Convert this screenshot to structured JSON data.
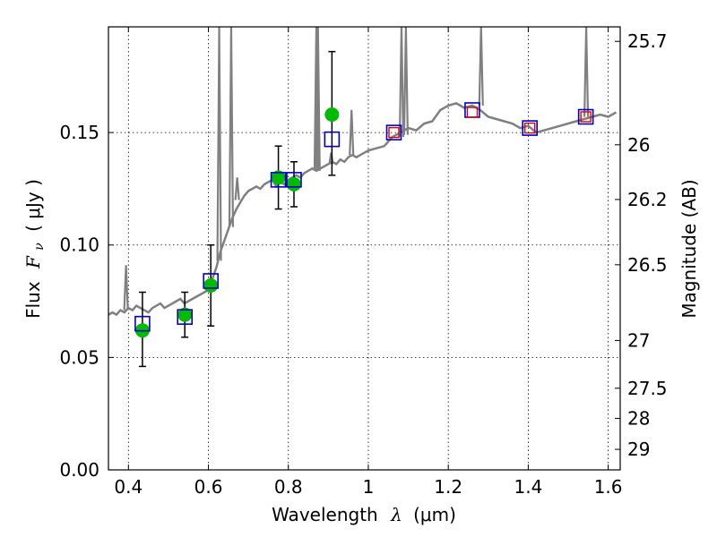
{
  "chart_data": {
    "type": "scatter",
    "xlabel_text": "Wavelength",
    "xlabel_math": "λ",
    "xlabel_unit": "(μm)",
    "ylabel_text": "Flux",
    "ylabel_math": "F",
    "ylabel_math_sub": "ν",
    "ylabel_unit": "( μJy )",
    "y2label": "Magnitude (AB)",
    "xlim": [
      0.35,
      1.63
    ],
    "ylim": [
      0.0,
      0.197
    ],
    "x_ticks": [
      0.4,
      0.6,
      0.8,
      1.0,
      1.2,
      1.4,
      1.6
    ],
    "x_tick_labels": [
      "0.4",
      "0.6",
      "0.8",
      "1",
      "1.2",
      "1.4",
      "1.6"
    ],
    "y_ticks": [
      0.0,
      0.05,
      0.1,
      0.15
    ],
    "y_tick_labels": [
      "0.00",
      "0.05",
      "0.10",
      "0.15"
    ],
    "mag_ticks": [
      25.7,
      26,
      26.2,
      26.5,
      27,
      27.5,
      28,
      29
    ],
    "mag_tick_labels": [
      "25.7",
      "26",
      "26.2",
      "26.5",
      "27",
      "27.5",
      "28",
      "29"
    ],
    "grid": true,
    "series": [
      {
        "name": "template spectrum",
        "kind": "line",
        "color": "#808080",
        "x": [
          0.35,
          0.36,
          0.37,
          0.38,
          0.39,
          0.4,
          0.41,
          0.42,
          0.43,
          0.44,
          0.45,
          0.46,
          0.47,
          0.48,
          0.49,
          0.5,
          0.51,
          0.52,
          0.53,
          0.54,
          0.55,
          0.56,
          0.57,
          0.58,
          0.59,
          0.6,
          0.61,
          0.62,
          0.63,
          0.64,
          0.65,
          0.66,
          0.67,
          0.68,
          0.69,
          0.7,
          0.71,
          0.72,
          0.73,
          0.74,
          0.75,
          0.76,
          0.77,
          0.78,
          0.79,
          0.8,
          0.81,
          0.82,
          0.83,
          0.84,
          0.85,
          0.86,
          0.87,
          0.88,
          0.89,
          0.9,
          0.91,
          0.92,
          0.93,
          0.94,
          0.95,
          0.96,
          0.97,
          0.98,
          0.99,
          1.0,
          1.02,
          1.04,
          1.06,
          1.08,
          1.1,
          1.12,
          1.14,
          1.16,
          1.18,
          1.2,
          1.22,
          1.24,
          1.26,
          1.28,
          1.3,
          1.32,
          1.34,
          1.36,
          1.38,
          1.4,
          1.42,
          1.44,
          1.46,
          1.48,
          1.5,
          1.52,
          1.54,
          1.56,
          1.58,
          1.6,
          1.62
        ],
        "y": [
          0.069,
          0.07,
          0.069,
          0.071,
          0.07,
          0.072,
          0.071,
          0.073,
          0.072,
          0.071,
          0.07,
          0.072,
          0.073,
          0.074,
          0.072,
          0.073,
          0.074,
          0.075,
          0.076,
          0.074,
          0.075,
          0.076,
          0.077,
          0.078,
          0.079,
          0.08,
          0.085,
          0.09,
          0.097,
          0.102,
          0.107,
          0.112,
          0.116,
          0.119,
          0.122,
          0.124,
          0.125,
          0.126,
          0.125,
          0.127,
          0.128,
          0.129,
          0.126,
          0.128,
          0.127,
          0.129,
          0.13,
          0.131,
          0.13,
          0.132,
          0.133,
          0.134,
          0.133,
          0.134,
          0.135,
          0.136,
          0.137,
          0.136,
          0.138,
          0.137,
          0.139,
          0.14,
          0.139,
          0.14,
          0.141,
          0.142,
          0.143,
          0.144,
          0.148,
          0.15,
          0.152,
          0.151,
          0.154,
          0.155,
          0.16,
          0.162,
          0.163,
          0.161,
          0.162,
          0.16,
          0.157,
          0.156,
          0.155,
          0.154,
          0.152,
          0.153,
          0.15,
          0.151,
          0.152,
          0.153,
          0.154,
          0.155,
          0.156,
          0.157,
          0.158,
          0.157,
          0.159
        ]
      },
      {
        "name": "emission spikes",
        "kind": "spikes",
        "color": "#808080",
        "x": [
          0.394,
          0.627,
          0.657,
          0.672,
          0.87,
          0.874,
          0.907,
          0.958,
          1.083,
          1.094,
          1.282,
          1.545
        ],
        "base": [
          0.071,
          0.093,
          0.108,
          0.12,
          0.133,
          0.133,
          0.136,
          0.14,
          0.148,
          0.149,
          0.162,
          0.157
        ],
        "peak": [
          0.091,
          0.197,
          0.197,
          0.13,
          0.197,
          0.197,
          0.141,
          0.16,
          0.197,
          0.197,
          0.197,
          0.197
        ]
      },
      {
        "name": "observed photometry",
        "kind": "points",
        "color": "#00bb00",
        "x": [
          0.435,
          0.541,
          0.606,
          0.775,
          0.814,
          0.909
        ],
        "y": [
          0.062,
          0.069,
          0.082,
          0.13,
          0.127,
          0.158
        ],
        "yerr_low": [
          0.046,
          0.059,
          0.064,
          0.116,
          0.117,
          0.131
        ],
        "yerr_high": [
          0.079,
          0.079,
          0.1,
          0.144,
          0.137,
          0.186
        ]
      },
      {
        "name": "model photometry",
        "kind": "squares",
        "color": "#0000cc",
        "x": [
          0.435,
          0.541,
          0.606,
          0.775,
          0.814,
          0.909,
          1.064,
          1.26,
          1.404,
          1.544
        ],
        "y": [
          0.065,
          0.068,
          0.084,
          0.129,
          0.129,
          0.147,
          0.15,
          0.16,
          0.152,
          0.157
        ]
      },
      {
        "name": "observed photometry (IR)",
        "kind": "red-squares",
        "color": "#dd0000",
        "x": [
          1.064,
          1.26,
          1.404,
          1.544
        ],
        "y": [
          0.15,
          0.159,
          0.152,
          0.157
        ]
      }
    ]
  }
}
